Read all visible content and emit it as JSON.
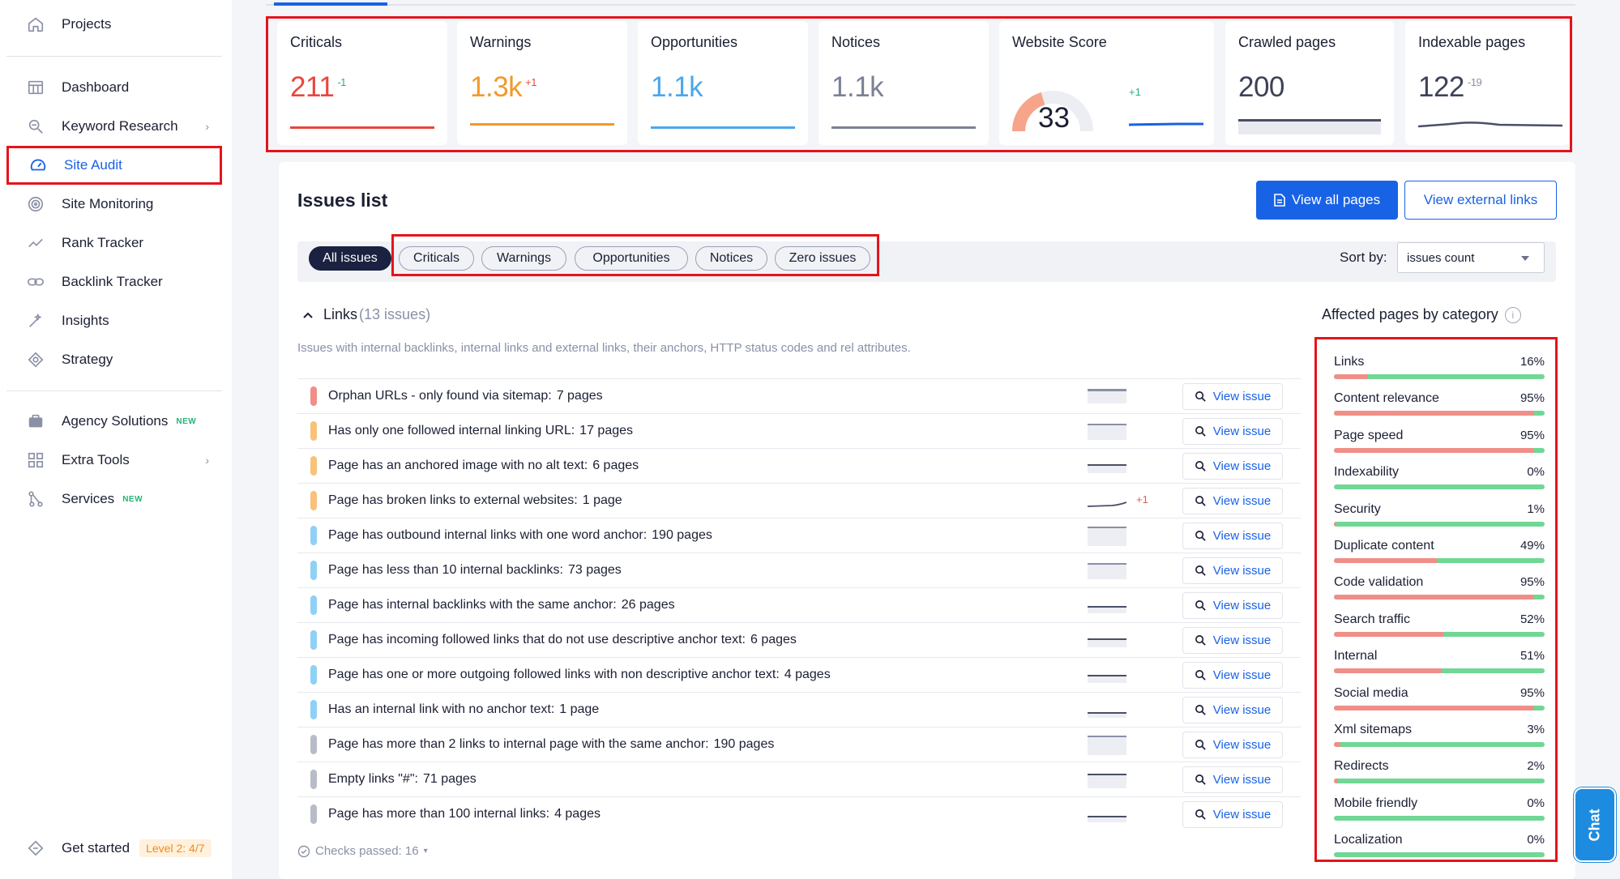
{
  "sidebar": {
    "projects": "Projects",
    "dashboard": "Dashboard",
    "keyword_research": "Keyword Research",
    "site_audit": "Site Audit",
    "site_monitoring": "Site Monitoring",
    "rank_tracker": "Rank Tracker",
    "backlink_tracker": "Backlink Tracker",
    "insights": "Insights",
    "strategy": "Strategy",
    "agency_solutions": "Agency Solutions",
    "extra_tools": "Extra Tools",
    "services": "Services",
    "new_badge": "NEW",
    "get_started": "Get started",
    "level": "Level 2: 4/7"
  },
  "metrics": {
    "criticals": {
      "title": "Criticals",
      "value": "211",
      "delta": "-1",
      "color": "#e8473c"
    },
    "warnings": {
      "title": "Warnings",
      "value": "1.3k",
      "delta": "+1",
      "color": "#f19a2b"
    },
    "opportunities": {
      "title": "Opportunities",
      "value": "1.1k",
      "color": "#4aa8ea"
    },
    "notices": {
      "title": "Notices",
      "value": "1.1k",
      "color": "#7b8196"
    },
    "website_score": {
      "title": "Website Score",
      "value": "33",
      "delta": "+1"
    },
    "crawled_pages": {
      "title": "Crawled pages",
      "value": "200"
    },
    "indexable_pages": {
      "title": "Indexable pages",
      "value": "122",
      "delta": "-19"
    }
  },
  "issues": {
    "title": "Issues list",
    "view_all_pages": "View all pages",
    "view_external_links": "View external links",
    "filters": [
      "All issues",
      "Criticals",
      "Warnings",
      "Opportunities",
      "Notices",
      "Zero issues"
    ],
    "sort_label": "Sort by:",
    "sort_value": "issues count",
    "group_name": "Links",
    "group_count": "(13 issues)",
    "group_description": "Issues with internal backlinks, internal links and external links, their anchors, HTTP status codes and rel attributes.",
    "view_issue": "View issue",
    "checks_passed": "Checks passed: 16",
    "rows": [
      {
        "text": "Orphan URLs - only found via sitemap:",
        "pages": "7 pages",
        "severity": "critical"
      },
      {
        "text": "Has only one followed internal linking URL:",
        "pages": "17 pages",
        "severity": "warning"
      },
      {
        "text": "Page has an anchored image with no alt text:",
        "pages": "6 pages",
        "severity": "warning"
      },
      {
        "text": "Page has broken links to external websites:",
        "pages": "1 page",
        "severity": "warning",
        "delta": "+1"
      },
      {
        "text": "Page has outbound internal links with one word anchor:",
        "pages": "190 pages",
        "severity": "opportunity"
      },
      {
        "text": "Page has less than 10 internal backlinks:",
        "pages": "73 pages",
        "severity": "opportunity"
      },
      {
        "text": "Page has internal backlinks with the same anchor:",
        "pages": "26 pages",
        "severity": "opportunity"
      },
      {
        "text": "Page has incoming followed links that do not use descriptive anchor text:",
        "pages": "6 pages",
        "severity": "opportunity"
      },
      {
        "text": "Page has one or more outgoing followed links with non descriptive anchor text:",
        "pages": "4 pages",
        "severity": "opportunity"
      },
      {
        "text": "Has an internal link with no anchor text:",
        "pages": "1 page",
        "severity": "opportunity"
      },
      {
        "text": "Page has more than 2 links to internal page with the same anchor:",
        "pages": "190 pages",
        "severity": "notice"
      },
      {
        "text": "Empty links \"#\":",
        "pages": "71 pages",
        "severity": "notice"
      },
      {
        "text": "Page has more than 100 internal links:",
        "pages": "4 pages",
        "severity": "notice"
      }
    ]
  },
  "severity_colors": {
    "critical": "#f08e88",
    "warning": "#f8c27a",
    "opportunity": "#8fd0f5",
    "notice": "#b8bcc8"
  },
  "categories": {
    "title": "Affected pages by category",
    "items": [
      {
        "name": "Links",
        "pct": "16%",
        "value": 16
      },
      {
        "name": "Content relevance",
        "pct": "95%",
        "value": 95
      },
      {
        "name": "Page speed",
        "pct": "95%",
        "value": 95
      },
      {
        "name": "Indexability",
        "pct": "0%",
        "value": 0
      },
      {
        "name": "Security",
        "pct": "1%",
        "value": 1
      },
      {
        "name": "Duplicate content",
        "pct": "49%",
        "value": 49
      },
      {
        "name": "Code validation",
        "pct": "95%",
        "value": 95
      },
      {
        "name": "Search traffic",
        "pct": "52%",
        "value": 52
      },
      {
        "name": "Internal",
        "pct": "51%",
        "value": 51
      },
      {
        "name": "Social media",
        "pct": "95%",
        "value": 95
      },
      {
        "name": "Xml sitemaps",
        "pct": "3%",
        "value": 3
      },
      {
        "name": "Redirects",
        "pct": "2%",
        "value": 2
      },
      {
        "name": "Mobile friendly",
        "pct": "0%",
        "value": 0
      },
      {
        "name": "Localization",
        "pct": "0%",
        "value": 0
      }
    ]
  },
  "chat": "Chat"
}
